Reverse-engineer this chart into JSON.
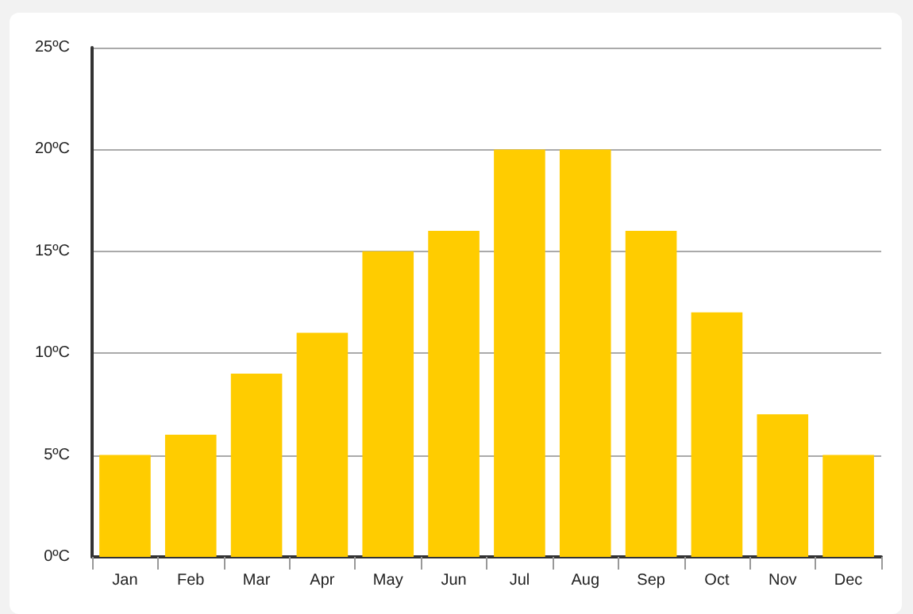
{
  "chart_data": {
    "type": "bar",
    "categories": [
      "Jan",
      "Feb",
      "Mar",
      "Apr",
      "May",
      "Jun",
      "Jul",
      "Aug",
      "Sep",
      "Oct",
      "Nov",
      "Dec"
    ],
    "values": [
      5,
      6,
      9,
      11,
      15,
      16,
      20,
      20,
      16,
      12,
      7,
      5
    ],
    "color": "#ffcc00",
    "ylim": [
      0,
      25
    ],
    "yticks": [
      {
        "value": 0,
        "label": "0ºC"
      },
      {
        "value": 5,
        "label": "5ºC"
      },
      {
        "value": 10,
        "label": "10ºC"
      },
      {
        "value": 15,
        "label": "15ºC"
      },
      {
        "value": 20,
        "label": "20ºC"
      },
      {
        "value": 25,
        "label": "25ºC"
      }
    ],
    "grid": "y"
  }
}
